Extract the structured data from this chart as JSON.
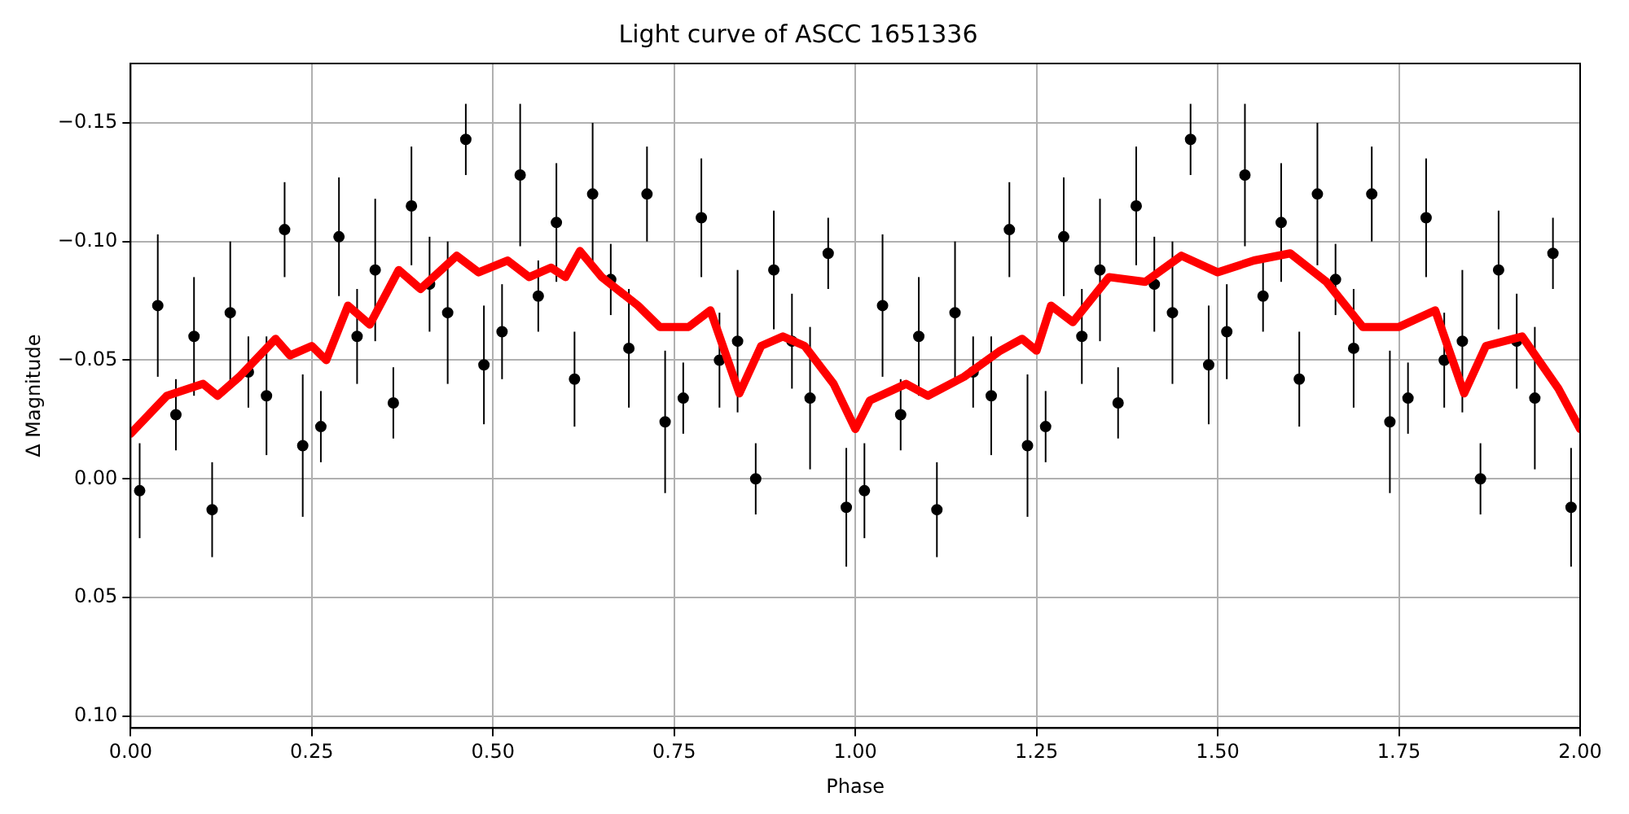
{
  "chart_data": {
    "type": "scatter",
    "title": "Light curve of ASCC 1651336",
    "xlabel": "Phase",
    "ylabel": "Δ Magnitude",
    "xlim": [
      0,
      2
    ],
    "ylim": [
      0.105,
      -0.175
    ],
    "xticks": [
      {
        "value": 0,
        "label": "0.00"
      },
      {
        "value": 0.25,
        "label": "0.25"
      },
      {
        "value": 0.5,
        "label": "0.50"
      },
      {
        "value": 0.75,
        "label": "0.75"
      },
      {
        "value": 1,
        "label": "1.00"
      },
      {
        "value": 1.25,
        "label": "1.25"
      },
      {
        "value": 1.5,
        "label": "1.50"
      },
      {
        "value": 1.75,
        "label": "1.75"
      },
      {
        "value": 2,
        "label": "2.00"
      }
    ],
    "yticks": [
      {
        "value": -0.15,
        "label": "−0.15"
      },
      {
        "value": -0.1,
        "label": "−0.10"
      },
      {
        "value": -0.05,
        "label": "−0.05"
      },
      {
        "value": 0,
        "label": "0.00"
      },
      {
        "value": 0.05,
        "label": "0.05"
      },
      {
        "value": 0.1,
        "label": "0.10"
      }
    ],
    "grid": true,
    "legend": false,
    "series": [
      {
        "color": "#000000",
        "marker": "circle",
        "x": [
          0.0125,
          0.0375,
          0.0625,
          0.0875,
          0.1125,
          0.1375,
          0.1625,
          0.1875,
          0.2125,
          0.2375,
          0.2625,
          0.2875,
          0.3125,
          0.3375,
          0.3625,
          0.3875,
          0.4125,
          0.4375,
          0.4625,
          0.4875,
          0.5125,
          0.5375,
          0.5625,
          0.5875,
          0.6125,
          0.6375,
          0.6625,
          0.6875,
          0.7125,
          0.7375,
          0.7625,
          0.7875,
          0.8125,
          0.8375,
          0.8625,
          0.8875,
          0.9125,
          0.9375,
          0.9625,
          0.9875,
          1.0125,
          1.0375,
          1.0625,
          1.0875,
          1.1125,
          1.1375,
          1.1625,
          1.1875,
          1.2125,
          1.2375,
          1.2625,
          1.2875,
          1.3125,
          1.3375,
          1.3625,
          1.3875,
          1.4125,
          1.4375,
          1.4625,
          1.4875,
          1.5125,
          1.5375,
          1.5625,
          1.5875,
          1.6125,
          1.6375,
          1.6625,
          1.6875,
          1.7125,
          1.7375,
          1.7625,
          1.7875,
          1.8125,
          1.8375,
          1.8625,
          1.8875,
          1.9125,
          1.9375,
          1.9625,
          1.9875
        ],
        "values": [
          0.005,
          -0.073,
          -0.027,
          -0.06,
          0.013,
          -0.07,
          -0.045,
          -0.035,
          -0.105,
          -0.014,
          -0.022,
          -0.102,
          -0.06,
          -0.088,
          -0.032,
          -0.115,
          -0.082,
          -0.07,
          -0.143,
          -0.048,
          -0.062,
          -0.128,
          -0.077,
          -0.108,
          -0.042,
          -0.12,
          -0.084,
          -0.055,
          -0.12,
          -0.024,
          -0.034,
          -0.11,
          -0.05,
          -0.058,
          0.0,
          -0.088,
          -0.058,
          -0.034,
          -0.095,
          0.012,
          0.005,
          -0.073,
          -0.027,
          -0.06,
          0.013,
          -0.07,
          -0.045,
          -0.035,
          -0.105,
          -0.014,
          -0.022,
          -0.102,
          -0.06,
          -0.088,
          -0.032,
          -0.115,
          -0.082,
          -0.07,
          -0.143,
          -0.048,
          -0.062,
          -0.128,
          -0.077,
          -0.108,
          -0.042,
          -0.12,
          -0.084,
          -0.055,
          -0.12,
          -0.024,
          -0.034,
          -0.11,
          -0.05,
          -0.058,
          0.0,
          -0.088,
          -0.058,
          -0.034,
          -0.095,
          0.012
        ],
        "errors": [
          0.02,
          0.03,
          0.015,
          0.025,
          0.02,
          0.03,
          0.015,
          0.025,
          0.02,
          0.03,
          0.015,
          0.025,
          0.02,
          0.03,
          0.015,
          0.025,
          0.02,
          0.03,
          0.015,
          0.025,
          0.02,
          0.03,
          0.015,
          0.025,
          0.02,
          0.03,
          0.015,
          0.025,
          0.02,
          0.03,
          0.015,
          0.025,
          0.02,
          0.03,
          0.015,
          0.025,
          0.02,
          0.03,
          0.015,
          0.025,
          0.02,
          0.03,
          0.015,
          0.025,
          0.02,
          0.03,
          0.015,
          0.025,
          0.02,
          0.03,
          0.015,
          0.025,
          0.02,
          0.03,
          0.015,
          0.025,
          0.02,
          0.03,
          0.015,
          0.025,
          0.02,
          0.03,
          0.015,
          0.025,
          0.02,
          0.03,
          0.015,
          0.025,
          0.02,
          0.03,
          0.015,
          0.025,
          0.02,
          0.03,
          0.015,
          0.025,
          0.02,
          0.03,
          0.015,
          0.025
        ]
      },
      {
        "type": "line",
        "color": "#ff0000",
        "line_style": "solid",
        "x": [
          0,
          0.05,
          0.1,
          0.12,
          0.15,
          0.2,
          0.22,
          0.25,
          0.27,
          0.3,
          0.33,
          0.37,
          0.4,
          0.45,
          0.48,
          0.52,
          0.55,
          0.58,
          0.6,
          0.62,
          0.65,
          0.7,
          0.73,
          0.77,
          0.8,
          0.84,
          0.87,
          0.9,
          0.93,
          0.97,
          1.0,
          1.02,
          1.07,
          1.1,
          1.15,
          1.2,
          1.23,
          1.25,
          1.27,
          1.3,
          1.35,
          1.4,
          1.45,
          1.5,
          1.55,
          1.6,
          1.65,
          1.7,
          1.75,
          1.8,
          1.84,
          1.87,
          1.92,
          1.97,
          2.0
        ],
        "values": [
          -0.019,
          -0.035,
          -0.04,
          -0.035,
          -0.043,
          -0.059,
          -0.052,
          -0.056,
          -0.05,
          -0.073,
          -0.065,
          -0.088,
          -0.08,
          -0.094,
          -0.087,
          -0.092,
          -0.085,
          -0.089,
          -0.085,
          -0.096,
          -0.085,
          -0.073,
          -0.064,
          -0.064,
          -0.071,
          -0.036,
          -0.056,
          -0.06,
          -0.056,
          -0.04,
          -0.021,
          -0.033,
          -0.04,
          -0.035,
          -0.043,
          -0.054,
          -0.059,
          -0.054,
          -0.073,
          -0.066,
          -0.085,
          -0.083,
          -0.094,
          -0.087,
          -0.092,
          -0.095,
          -0.083,
          -0.064,
          -0.064,
          -0.071,
          -0.036,
          -0.056,
          -0.06,
          -0.038,
          -0.021
        ]
      }
    ]
  }
}
